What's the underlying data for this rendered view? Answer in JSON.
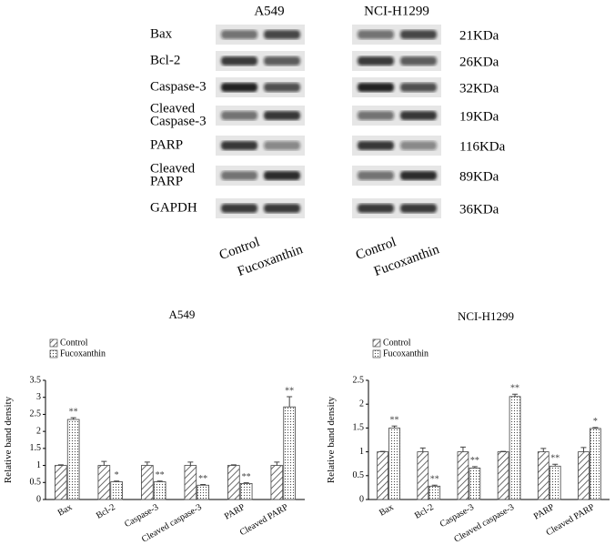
{
  "blot": {
    "cell_lines": [
      "A549",
      "NCI-H1299"
    ],
    "lanes": [
      "Control",
      "Fucoxanthin"
    ],
    "rows": [
      {
        "label": [
          "Bax"
        ],
        "size": "21KDa"
      },
      {
        "label": [
          "Bcl-2"
        ],
        "size": "26KDa"
      },
      {
        "label": [
          "Caspase-3"
        ],
        "size": "32KDa"
      },
      {
        "label": [
          "Cleaved",
          "Caspase-3"
        ],
        "size": "19KDa"
      },
      {
        "label": [
          "PARP"
        ],
        "size": "116KDa"
      },
      {
        "label": [
          "Cleaved",
          "PARP"
        ],
        "size": "89KDa"
      },
      {
        "label": [
          "GAPDH"
        ],
        "size": "36KDa"
      }
    ]
  },
  "chart_data": [
    {
      "type": "bar",
      "title": "A549",
      "ylabel": "Relative band density",
      "categories": [
        "Bax",
        "Bcl-2",
        "Caspase-3",
        "Cleaved caspase-3",
        "PARP",
        "Cleaved PARP"
      ],
      "series": [
        {
          "name": "Control",
          "color": "#ffffff",
          "pattern": "hatch",
          "values": [
            1,
            1,
            1,
            1,
            1,
            1
          ],
          "errors": [
            0.02,
            0.12,
            0.1,
            0.1,
            0.02,
            0.1
          ]
        },
        {
          "name": "Fucoxanthin",
          "color": "#ffffff",
          "pattern": "dots",
          "values": [
            2.35,
            0.52,
            0.52,
            0.42,
            0.47,
            2.72
          ],
          "errors": [
            0.05,
            0.02,
            0.02,
            0.02,
            0.02,
            0.3
          ]
        }
      ],
      "annotations": [
        "**",
        "*",
        "**",
        "**",
        "**",
        "**"
      ],
      "ylim": [
        0,
        3.5
      ],
      "yticks": [
        0,
        0.5,
        1,
        1.5,
        2,
        2.5,
        3,
        3.5
      ],
      "legend": "top-left"
    },
    {
      "type": "bar",
      "title": "NCI-H1299",
      "ylabel": "Relative band density",
      "categories": [
        "Bax",
        "Bcl-2",
        "Caspase-3",
        "Cleaved caspase-3",
        "PARP",
        "Cleaved PARP"
      ],
      "series": [
        {
          "name": "Control",
          "color": "#ffffff",
          "pattern": "hatch",
          "values": [
            1,
            1,
            1,
            1,
            1,
            1
          ],
          "errors": [
            0.01,
            0.08,
            0.1,
            0.01,
            0.07,
            0.09
          ]
        },
        {
          "name": "Fucoxanthin",
          "color": "#ffffff",
          "pattern": "dots",
          "values": [
            1.5,
            0.28,
            0.66,
            2.16,
            0.7,
            1.49
          ],
          "errors": [
            0.04,
            0.02,
            0.03,
            0.05,
            0.04,
            0.02
          ]
        }
      ],
      "annotations": [
        "**",
        "**",
        "**",
        "**",
        "**",
        "*"
      ],
      "ylim": [
        0,
        2.5
      ],
      "yticks": [
        0,
        0.5,
        1,
        1.5,
        2,
        2.5
      ],
      "legend": "top-left"
    }
  ]
}
